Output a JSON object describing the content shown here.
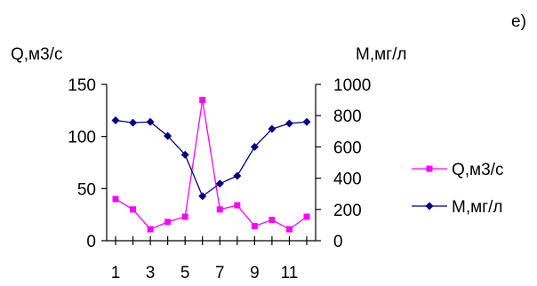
{
  "chart_data": {
    "type": "line",
    "panel_label": "е)",
    "x": [
      1,
      2,
      3,
      4,
      5,
      6,
      7,
      8,
      9,
      10,
      11,
      12
    ],
    "x_tick_labels": [
      "1",
      "3",
      "5",
      "7",
      "9",
      "11"
    ],
    "left_axis": {
      "label": "Q,м3/с",
      "ylim": [
        0,
        150
      ],
      "ticks": [
        "0",
        "50",
        "100",
        "150"
      ]
    },
    "right_axis": {
      "label": "М,мг/л",
      "ylim": [
        0,
        1000
      ],
      "ticks": [
        "0",
        "200",
        "400",
        "600",
        "800",
        "1000"
      ]
    },
    "series": [
      {
        "name": "Q,м3/с",
        "axis": "left",
        "color": "#ff00ff",
        "marker": "square",
        "values": [
          40,
          30,
          11,
          18,
          23,
          135,
          30,
          34,
          14,
          20,
          11,
          23
        ]
      },
      {
        "name": "М,мг/л",
        "axis": "right",
        "color": "#000080",
        "marker": "diamond",
        "values": [
          770,
          755,
          760,
          670,
          550,
          285,
          365,
          415,
          600,
          715,
          750,
          760
        ]
      }
    ],
    "legend_position": "right",
    "grid": false
  }
}
